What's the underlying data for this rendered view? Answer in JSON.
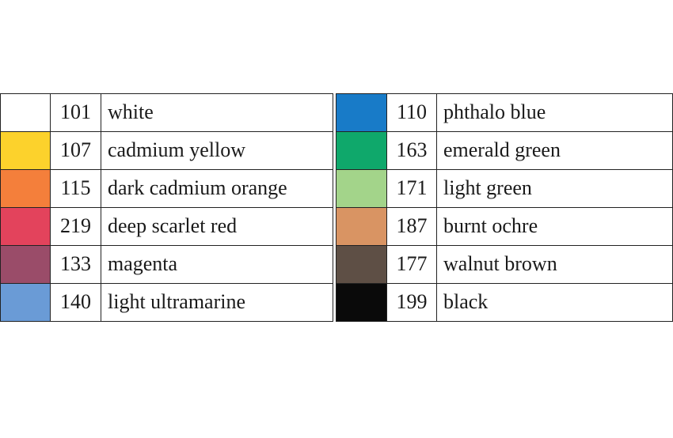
{
  "tables": [
    {
      "rows": [
        {
          "color": "#ffffff",
          "code": "101",
          "name": "white"
        },
        {
          "color": "#fcd22c",
          "code": "107",
          "name": "cadmium yellow"
        },
        {
          "color": "#f47f3b",
          "code": "115",
          "name": "dark cadmium orange"
        },
        {
          "color": "#e3435c",
          "code": "219",
          "name": "deep scarlet red"
        },
        {
          "color": "#9a4c69",
          "code": "133",
          "name": "magenta"
        },
        {
          "color": "#6a9bd6",
          "code": "140",
          "name": "light ultramarine"
        }
      ]
    },
    {
      "rows": [
        {
          "color": "#187bc8",
          "code": "110",
          "name": "phthalo blue"
        },
        {
          "color": "#0fa86b",
          "code": "163",
          "name": "emerald green"
        },
        {
          "color": "#a3d48a",
          "code": "171",
          "name": "light green"
        },
        {
          "color": "#d99463",
          "code": "187",
          "name": "burnt ochre"
        },
        {
          "color": "#5e4f45",
          "code": "177",
          "name": "walnut brown"
        },
        {
          "color": "#0a0a0a",
          "code": "199",
          "name": "black"
        }
      ]
    }
  ]
}
